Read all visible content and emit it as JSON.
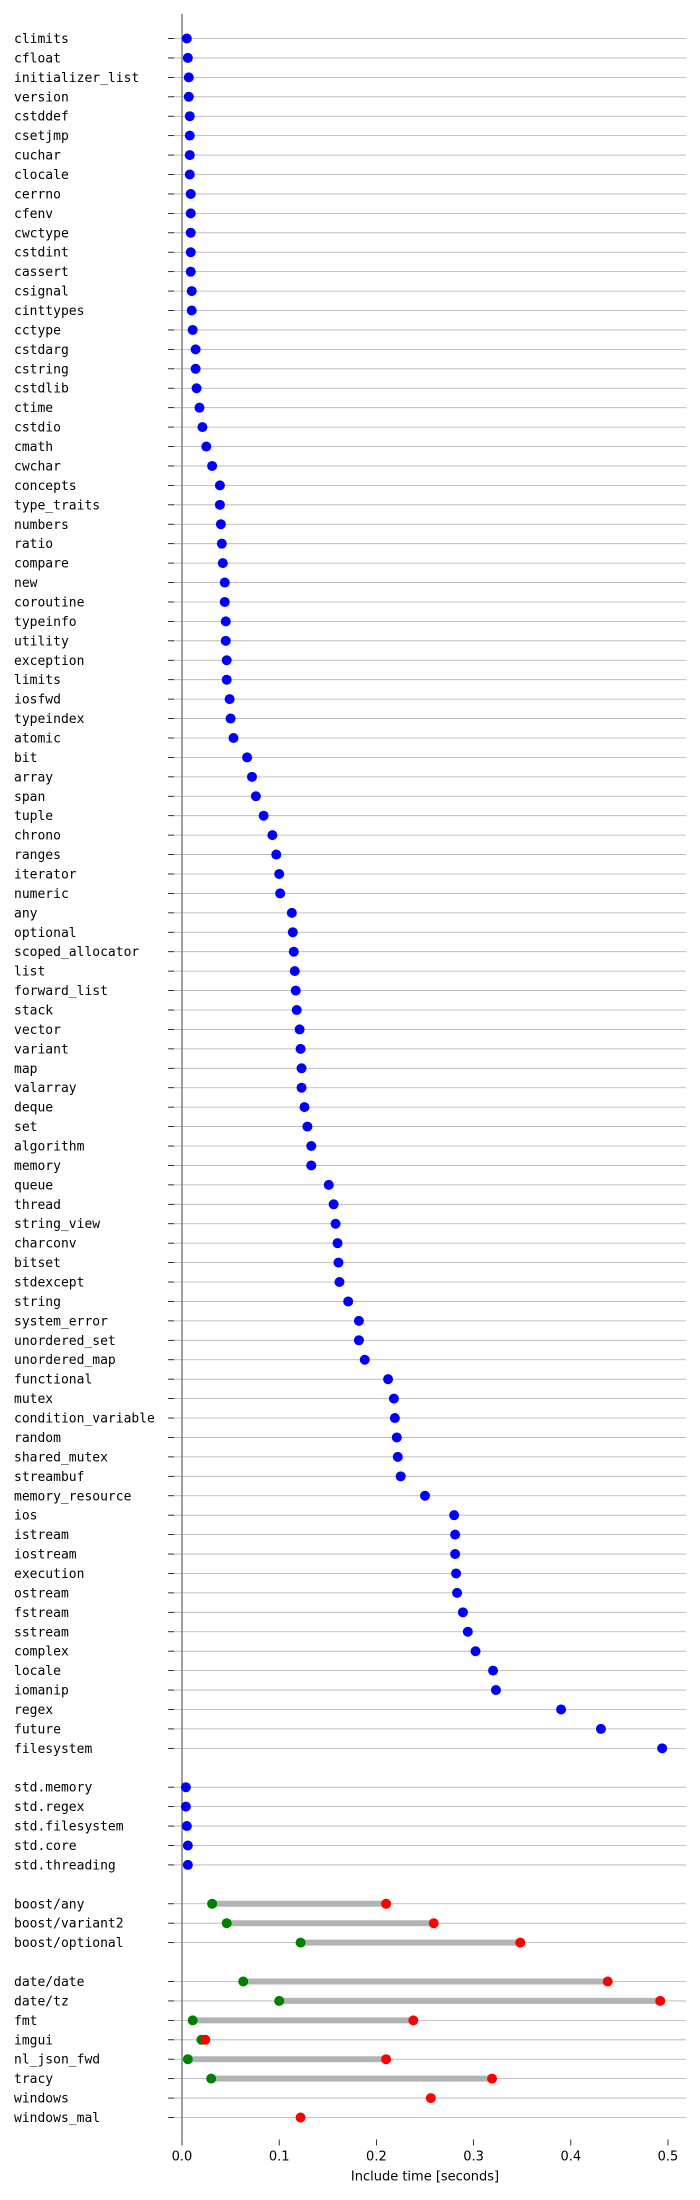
{
  "colors": {
    "point": "#0000ff",
    "min": "#007f00",
    "max": "#ff0000",
    "range": "#b3b3b3",
    "grid": "#b0b0b0",
    "axis": "#808080"
  },
  "chart_data": {
    "type": "scatter",
    "title": "",
    "xlabel": "Include time [seconds]",
    "xlim": [
      0,
      0.5
    ],
    "xticks": [
      "0.0",
      "0.1",
      "0.2",
      "0.3",
      "0.4",
      "0.5"
    ],
    "grid": "horizontal",
    "groups": [
      {
        "items": [
          {
            "label": "climits",
            "value": 0.005
          },
          {
            "label": "cfloat",
            "value": 0.006
          },
          {
            "label": "initializer_list",
            "value": 0.007
          },
          {
            "label": "version",
            "value": 0.007
          },
          {
            "label": "cstddef",
            "value": 0.008
          },
          {
            "label": "csetjmp",
            "value": 0.008
          },
          {
            "label": "cuchar",
            "value": 0.008
          },
          {
            "label": "clocale",
            "value": 0.008
          },
          {
            "label": "cerrno",
            "value": 0.009
          },
          {
            "label": "cfenv",
            "value": 0.009
          },
          {
            "label": "cwctype",
            "value": 0.009
          },
          {
            "label": "cstdint",
            "value": 0.009
          },
          {
            "label": "cassert",
            "value": 0.009
          },
          {
            "label": "csignal",
            "value": 0.01
          },
          {
            "label": "cinttypes",
            "value": 0.01
          },
          {
            "label": "cctype",
            "value": 0.011
          },
          {
            "label": "cstdarg",
            "value": 0.014
          },
          {
            "label": "cstring",
            "value": 0.014
          },
          {
            "label": "cstdlib",
            "value": 0.015
          },
          {
            "label": "ctime",
            "value": 0.018
          },
          {
            "label": "cstdio",
            "value": 0.021
          },
          {
            "label": "cmath",
            "value": 0.025
          },
          {
            "label": "cwchar",
            "value": 0.031
          },
          {
            "label": "concepts",
            "value": 0.039
          },
          {
            "label": "type_traits",
            "value": 0.039
          },
          {
            "label": "numbers",
            "value": 0.04
          },
          {
            "label": "ratio",
            "value": 0.041
          },
          {
            "label": "compare",
            "value": 0.042
          },
          {
            "label": "new",
            "value": 0.044
          },
          {
            "label": "coroutine",
            "value": 0.044
          },
          {
            "label": "typeinfo",
            "value": 0.045
          },
          {
            "label": "utility",
            "value": 0.045
          },
          {
            "label": "exception",
            "value": 0.046
          },
          {
            "label": "limits",
            "value": 0.046
          },
          {
            "label": "iosfwd",
            "value": 0.049
          },
          {
            "label": "typeindex",
            "value": 0.05
          },
          {
            "label": "atomic",
            "value": 0.053
          },
          {
            "label": "bit",
            "value": 0.067
          },
          {
            "label": "array",
            "value": 0.072
          },
          {
            "label": "span",
            "value": 0.076
          },
          {
            "label": "tuple",
            "value": 0.084
          },
          {
            "label": "chrono",
            "value": 0.093
          },
          {
            "label": "ranges",
            "value": 0.097
          },
          {
            "label": "iterator",
            "value": 0.1
          },
          {
            "label": "numeric",
            "value": 0.101
          },
          {
            "label": "any",
            "value": 0.113
          },
          {
            "label": "optional",
            "value": 0.114
          },
          {
            "label": "scoped_allocator",
            "value": 0.115
          },
          {
            "label": "list",
            "value": 0.116
          },
          {
            "label": "forward_list",
            "value": 0.117
          },
          {
            "label": "stack",
            "value": 0.118
          },
          {
            "label": "vector",
            "value": 0.121
          },
          {
            "label": "variant",
            "value": 0.122
          },
          {
            "label": "map",
            "value": 0.123
          },
          {
            "label": "valarray",
            "value": 0.123
          },
          {
            "label": "deque",
            "value": 0.126
          },
          {
            "label": "set",
            "value": 0.129
          },
          {
            "label": "algorithm",
            "value": 0.133
          },
          {
            "label": "memory",
            "value": 0.133
          },
          {
            "label": "queue",
            "value": 0.151
          },
          {
            "label": "thread",
            "value": 0.156
          },
          {
            "label": "string_view",
            "value": 0.158
          },
          {
            "label": "charconv",
            "value": 0.16
          },
          {
            "label": "bitset",
            "value": 0.161
          },
          {
            "label": "stdexcept",
            "value": 0.162
          },
          {
            "label": "string",
            "value": 0.171
          },
          {
            "label": "system_error",
            "value": 0.182
          },
          {
            "label": "unordered_set",
            "value": 0.182
          },
          {
            "label": "unordered_map",
            "value": 0.188
          },
          {
            "label": "functional",
            "value": 0.212
          },
          {
            "label": "mutex",
            "value": 0.218
          },
          {
            "label": "condition_variable",
            "value": 0.219
          },
          {
            "label": "random",
            "value": 0.221
          },
          {
            "label": "shared_mutex",
            "value": 0.222
          },
          {
            "label": "streambuf",
            "value": 0.225
          },
          {
            "label": "memory_resource",
            "value": 0.25
          },
          {
            "label": "ios",
            "value": 0.28
          },
          {
            "label": "istream",
            "value": 0.281
          },
          {
            "label": "iostream",
            "value": 0.281
          },
          {
            "label": "execution",
            "value": 0.282
          },
          {
            "label": "ostream",
            "value": 0.283
          },
          {
            "label": "fstream",
            "value": 0.289
          },
          {
            "label": "sstream",
            "value": 0.294
          },
          {
            "label": "complex",
            "value": 0.302
          },
          {
            "label": "locale",
            "value": 0.32
          },
          {
            "label": "iomanip",
            "value": 0.323
          },
          {
            "label": "regex",
            "value": 0.39
          },
          {
            "label": "future",
            "value": 0.431
          },
          {
            "label": "filesystem",
            "value": 0.494
          }
        ]
      },
      {
        "items": [
          {
            "label": "std.memory",
            "value": 0.004
          },
          {
            "label": "std.regex",
            "value": 0.004
          },
          {
            "label": "std.filesystem",
            "value": 0.005
          },
          {
            "label": "std.core",
            "value": 0.006
          },
          {
            "label": "std.threading",
            "value": 0.006
          }
        ]
      },
      {
        "items": [
          {
            "label": "boost/any",
            "min": 0.031,
            "max": 0.21
          },
          {
            "label": "boost/variant2",
            "min": 0.046,
            "max": 0.259
          },
          {
            "label": "boost/optional",
            "min": 0.122,
            "max": 0.348
          }
        ]
      },
      {
        "items": [
          {
            "label": "date/date",
            "min": 0.063,
            "max": 0.438
          },
          {
            "label": "date/tz",
            "min": 0.1,
            "max": 0.492
          },
          {
            "label": "fmt",
            "min": 0.011,
            "max": 0.238
          },
          {
            "label": "imgui",
            "min": 0.02,
            "max": 0.024
          },
          {
            "label": "nl_json_fwd",
            "min": 0.006,
            "max": 0.21
          },
          {
            "label": "tracy",
            "min": 0.03,
            "max": 0.319
          },
          {
            "label": "windows",
            "value": 0.256,
            "color": "max"
          },
          {
            "label": "windows_mal",
            "value": 0.122,
            "color": "max"
          }
        ]
      }
    ]
  }
}
